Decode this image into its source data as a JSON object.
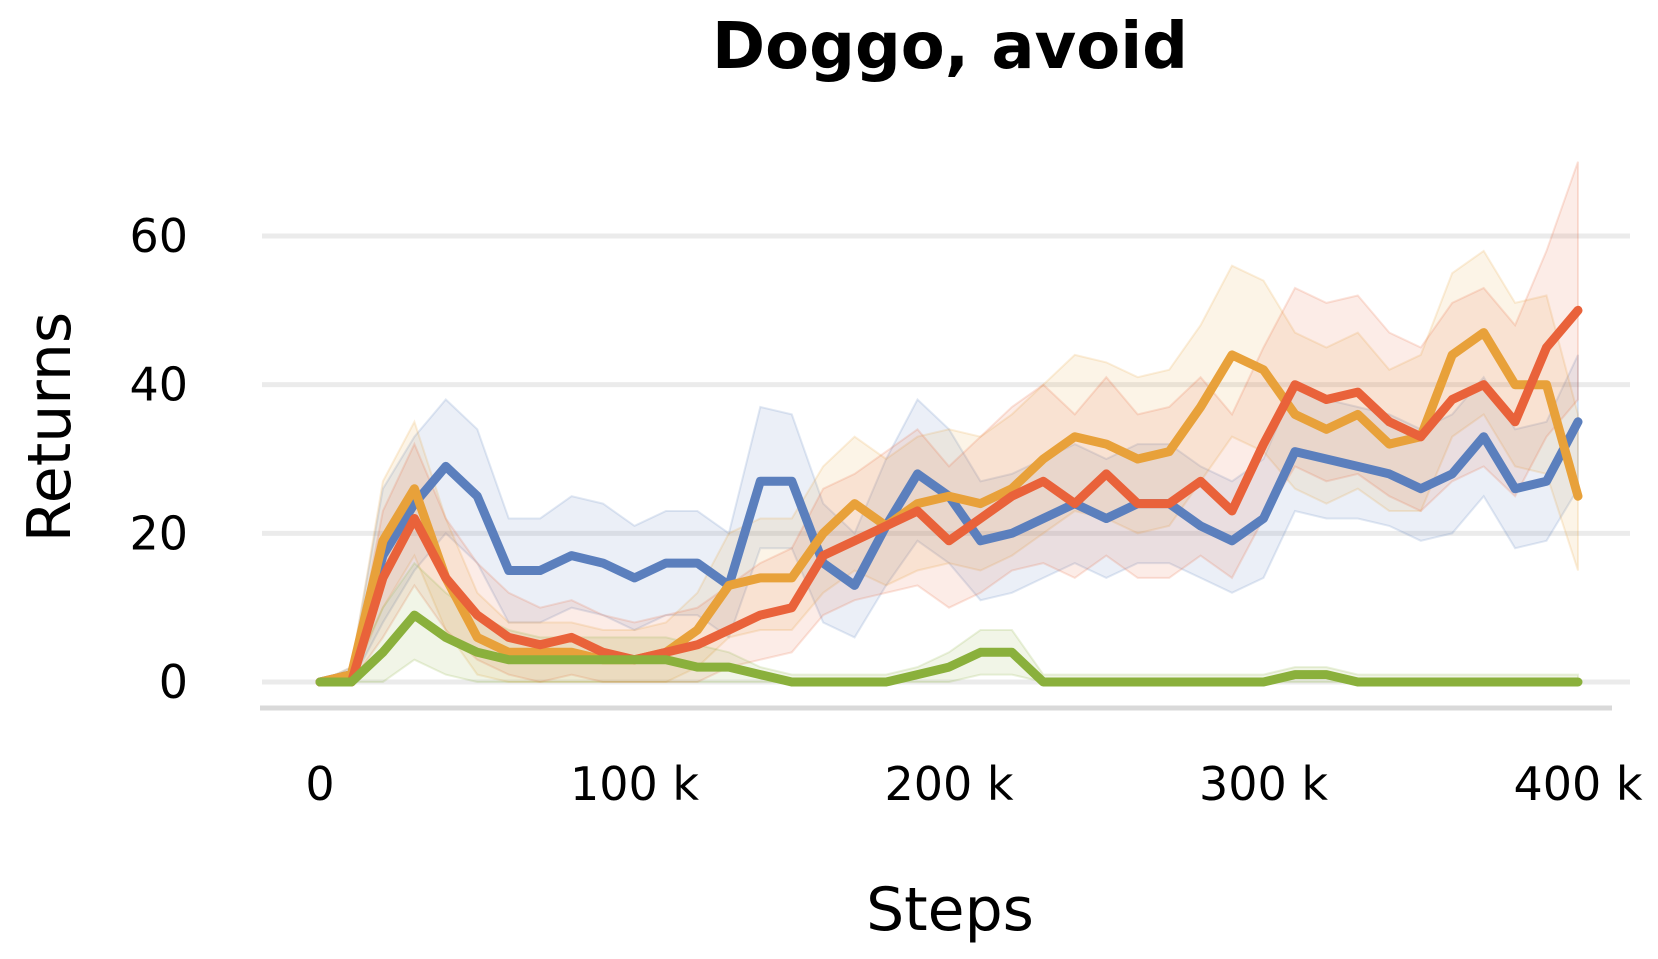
{
  "chart_data": {
    "type": "line",
    "title": "Doggo, avoid",
    "xlabel": "Steps",
    "ylabel": "Returns",
    "xlim": [
      0,
      400000
    ],
    "ylim": [
      -3,
      72
    ],
    "x_ticks": [
      {
        "value": 0,
        "label": "0"
      },
      {
        "value": 100000,
        "label": "100 k"
      },
      {
        "value": 200000,
        "label": "200 k"
      },
      {
        "value": 300000,
        "label": "300 k"
      },
      {
        "value": 400000,
        "label": "400 k"
      }
    ],
    "y_ticks": [
      {
        "value": 0,
        "label": "0"
      },
      {
        "value": 20,
        "label": "20"
      },
      {
        "value": 40,
        "label": "40"
      },
      {
        "value": 60,
        "label": "60"
      }
    ],
    "grid": true,
    "legend": "none",
    "x": [
      0,
      10000,
      20000,
      30000,
      40000,
      50000,
      60000,
      70000,
      80000,
      90000,
      100000,
      110000,
      120000,
      130000,
      140000,
      150000,
      160000,
      170000,
      180000,
      190000,
      200000,
      210000,
      220000,
      230000,
      240000,
      250000,
      260000,
      270000,
      280000,
      290000,
      300000,
      310000,
      320000,
      330000,
      340000,
      350000,
      360000,
      370000,
      380000,
      390000,
      400000
    ],
    "series": [
      {
        "color": "#5b7fbd",
        "values": [
          0,
          1,
          17,
          24,
          29,
          25,
          15,
          15,
          17,
          16,
          14,
          16,
          16,
          13,
          27,
          27,
          16,
          13,
          21,
          28,
          25,
          19,
          20,
          22,
          24,
          22,
          24,
          24,
          21,
          19,
          22,
          31,
          30,
          29,
          28,
          26,
          28,
          33,
          26,
          27,
          35
        ],
        "band_lower": [
          0,
          0,
          8,
          15,
          20,
          16,
          8,
          8,
          10,
          9,
          7,
          9,
          9,
          6,
          18,
          18,
          8,
          6,
          13,
          19,
          16,
          11,
          12,
          14,
          16,
          14,
          16,
          16,
          14,
          12,
          14,
          23,
          22,
          22,
          21,
          19,
          20,
          25,
          18,
          19,
          26
        ],
        "band_upper": [
          0,
          2,
          26,
          33,
          38,
          34,
          22,
          22,
          25,
          24,
          21,
          23,
          23,
          20,
          37,
          36,
          24,
          20,
          30,
          38,
          34,
          27,
          28,
          30,
          32,
          30,
          32,
          32,
          29,
          27,
          30,
          40,
          38,
          37,
          36,
          34,
          36,
          41,
          34,
          35,
          44
        ]
      },
      {
        "color": "#e8a13a",
        "values": [
          0,
          1,
          19,
          26,
          14,
          6,
          4,
          4,
          4,
          3,
          3,
          4,
          7,
          13,
          14,
          14,
          20,
          24,
          21,
          24,
          25,
          24,
          26,
          30,
          33,
          32,
          30,
          31,
          37,
          44,
          42,
          36,
          34,
          36,
          32,
          33,
          44,
          47,
          40,
          40,
          25
        ],
        "band_lower": [
          0,
          0,
          10,
          17,
          7,
          1,
          0,
          0,
          0,
          0,
          0,
          0,
          2,
          6,
          7,
          7,
          12,
          15,
          13,
          15,
          16,
          15,
          17,
          20,
          23,
          22,
          20,
          21,
          27,
          33,
          31,
          26,
          24,
          26,
          23,
          23,
          33,
          36,
          29,
          28,
          15
        ],
        "band_upper": [
          0,
          2,
          27,
          35,
          22,
          12,
          8,
          8,
          8,
          7,
          7,
          8,
          12,
          20,
          22,
          22,
          29,
          33,
          30,
          33,
          34,
          33,
          36,
          40,
          44,
          43,
          41,
          42,
          48,
          56,
          54,
          47,
          45,
          47,
          42,
          44,
          55,
          58,
          51,
          52,
          36
        ]
      },
      {
        "color": "#e9623a",
        "values": [
          0,
          0,
          14,
          22,
          14,
          9,
          6,
          5,
          6,
          4,
          3,
          4,
          5,
          7,
          9,
          10,
          17,
          19,
          21,
          23,
          19,
          22,
          25,
          27,
          24,
          28,
          24,
          24,
          27,
          23,
          32,
          40,
          38,
          39,
          35,
          33,
          38,
          40,
          35,
          45,
          50
        ],
        "band_lower": [
          0,
          0,
          6,
          13,
          7,
          3,
          1,
          0,
          1,
          0,
          0,
          0,
          0,
          2,
          3,
          4,
          9,
          11,
          12,
          13,
          10,
          12,
          15,
          16,
          14,
          17,
          14,
          14,
          17,
          14,
          22,
          29,
          27,
          28,
          25,
          23,
          27,
          29,
          25,
          33,
          38
        ],
        "band_upper": [
          0,
          1,
          23,
          32,
          22,
          16,
          12,
          10,
          11,
          9,
          8,
          9,
          10,
          13,
          16,
          18,
          26,
          28,
          31,
          34,
          29,
          33,
          37,
          40,
          36,
          41,
          36,
          37,
          41,
          36,
          45,
          53,
          51,
          52,
          47,
          45,
          51,
          53,
          48,
          58,
          70
        ]
      },
      {
        "color": "#8ab03c",
        "values": [
          0,
          0,
          4,
          9,
          6,
          4,
          3,
          3,
          3,
          3,
          3,
          3,
          2,
          2,
          1,
          0,
          0,
          0,
          0,
          1,
          2,
          4,
          4,
          0,
          0,
          0,
          0,
          0,
          0,
          0,
          0,
          1,
          1,
          0,
          0,
          0,
          0,
          0,
          0,
          0,
          0
        ],
        "band_lower": [
          0,
          0,
          0,
          3,
          1,
          0,
          0,
          0,
          0,
          0,
          0,
          0,
          0,
          0,
          0,
          0,
          0,
          0,
          0,
          0,
          0,
          1,
          1,
          0,
          0,
          0,
          0,
          0,
          0,
          0,
          0,
          0,
          0,
          0,
          0,
          0,
          0,
          0,
          0,
          0,
          0
        ],
        "band_upper": [
          0,
          1,
          10,
          16,
          12,
          9,
          7,
          6,
          6,
          6,
          6,
          6,
          5,
          4,
          2,
          1,
          1,
          1,
          1,
          2,
          4,
          7,
          7,
          1,
          1,
          1,
          1,
          1,
          1,
          1,
          1,
          2,
          2,
          1,
          1,
          1,
          1,
          1,
          1,
          1,
          1
        ]
      }
    ]
  }
}
